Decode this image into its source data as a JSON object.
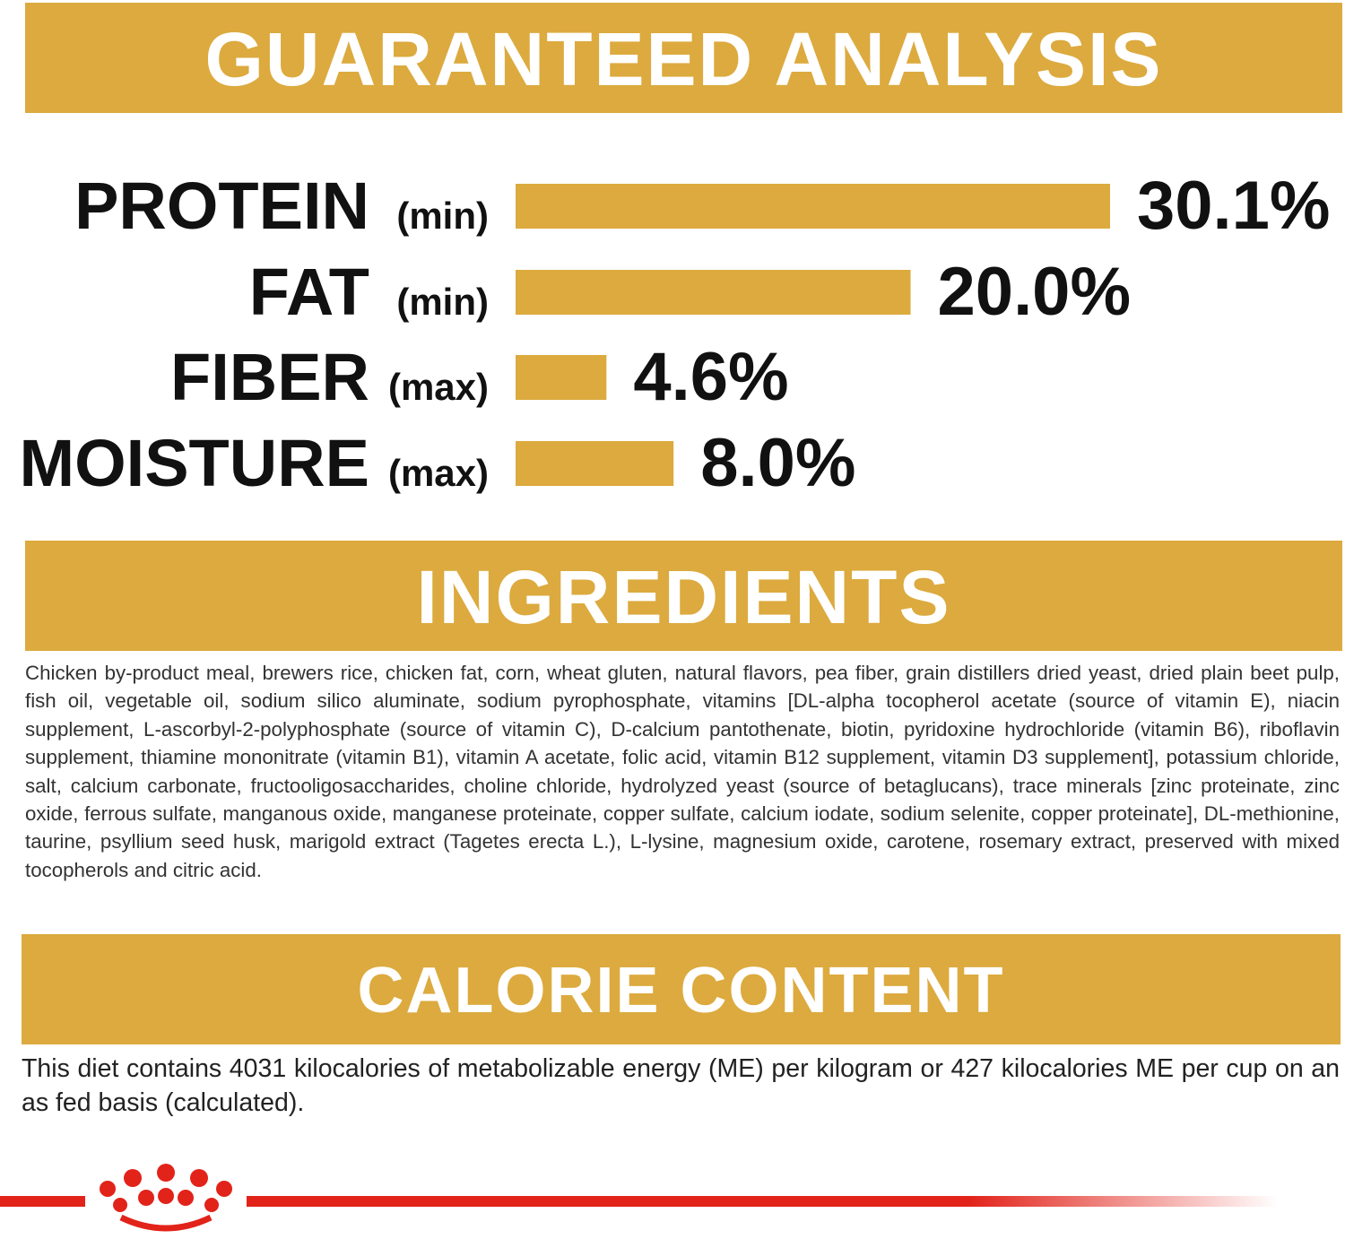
{
  "chart_data": {
    "type": "bar",
    "orientation": "horizontal",
    "title": "GUARANTEED ANALYSIS",
    "categories": [
      "PROTEIN",
      "FAT",
      "FIBER",
      "MOISTURE"
    ],
    "qualifiers": [
      "(min)",
      "(min)",
      "(max)",
      "(max)"
    ],
    "values": [
      30.1,
      20.0,
      4.6,
      8.0
    ],
    "value_labels": [
      "30.1%",
      "20.0%",
      "4.6%",
      "8.0%"
    ],
    "color": "#dcaa3e"
  },
  "ingredients": {
    "title": "INGREDIENTS",
    "text": "Chicken by-product meal, brewers rice, chicken fat, corn, wheat gluten, natural flavors, pea fiber, grain distillers dried yeast, dried plain beet pulp, fish oil, vegetable oil, sodium silico aluminate, sodium pyrophosphate, vitamins [DL-alpha tocopherol acetate (source of vitamin E), niacin supplement, L-ascorbyl-2-polyphosphate (source of vitamin C), D-calcium pantothenate, biotin, pyridoxine hydrochloride (vitamin B6), riboflavin supplement, thiamine mononitrate (vitamin B1), vitamin A acetate, folic acid, vitamin B12 supplement, vitamin D3 supplement], potassium chloride, salt, calcium carbonate, fructooligosaccharides, choline chloride, hydrolyzed yeast (source of betaglucans), trace minerals [zinc proteinate, zinc oxide, ferrous sulfate, manganous oxide, manganese proteinate, copper sulfate, calcium iodate, sodium selenite, copper proteinate], DL-methionine, taurine, psyllium seed husk, marigold extract (Tagetes erecta L.), L-lysine, magnesium oxide, carotene, rosemary extract, preserved with mixed tocopherols and citric acid."
  },
  "calorie_content": {
    "title": "CALORIE CONTENT",
    "text": "This diet contains 4031 kilocalories of metabolizable energy (ME) per kilogram or 427 kilocalories ME per cup on an as fed basis (calculated)."
  }
}
